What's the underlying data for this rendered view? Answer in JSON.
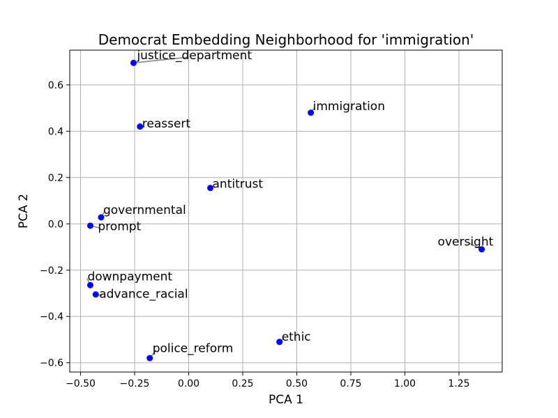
{
  "chart_data": {
    "type": "scatter",
    "title": "Democrat Embedding Neighborhood for 'immigration'",
    "xlabel": "PCA 1",
    "ylabel": "PCA 2",
    "xlim": [
      -0.55,
      1.45
    ],
    "ylim": [
      -0.64,
      0.75
    ],
    "xticks": [
      -0.5,
      -0.25,
      0.0,
      0.25,
      0.5,
      0.75,
      1.0,
      1.25
    ],
    "xtick_labels": [
      "−0.50",
      "−0.25",
      "0.00",
      "0.25",
      "0.50",
      "0.75",
      "1.00",
      "1.25"
    ],
    "yticks": [
      -0.6,
      -0.4,
      -0.2,
      0.0,
      0.2,
      0.4,
      0.6
    ],
    "ytick_labels": [
      "−0.6",
      "−0.4",
      "−0.2",
      "0.0",
      "0.2",
      "0.4",
      "0.6"
    ],
    "grid": true,
    "marker_color": "#0000ff",
    "leader_color": "#808080",
    "points": [
      {
        "label": "justice_department",
        "x": -0.255,
        "y": 0.695,
        "label_x": 0.0,
        "label_y": 0.72
      },
      {
        "label": "immigration",
        "x": 0.565,
        "y": 0.48,
        "label_x": 0.58,
        "label_y": 0.5
      },
      {
        "label": "reassert",
        "x": -0.225,
        "y": 0.42,
        "label_x": -0.225,
        "label_y": 0.425
      },
      {
        "label": "antitrust",
        "x": 0.1,
        "y": 0.155,
        "label_x": 0.11,
        "label_y": 0.165
      },
      {
        "label": "governmental",
        "x": -0.405,
        "y": 0.028,
        "label_x": -0.39,
        "label_y": 0.052
      },
      {
        "label": "prompt",
        "x": -0.455,
        "y": -0.008,
        "label_x": -0.41,
        "label_y": -0.018
      },
      {
        "label": "oversight",
        "x": 1.355,
        "y": -0.11,
        "label_x": 1.3,
        "label_y": -0.085
      },
      {
        "label": "downpayment",
        "x": -0.455,
        "y": -0.265,
        "label_x": -0.47,
        "label_y": -0.235
      },
      {
        "label": "advance_racial",
        "x": -0.43,
        "y": -0.305,
        "label_x": -0.4,
        "label_y": -0.31
      },
      {
        "label": "ethic",
        "x": 0.42,
        "y": -0.51,
        "label_x": 0.44,
        "label_y": -0.495
      },
      {
        "label": "police_reform",
        "x": -0.18,
        "y": -0.58,
        "label_x": -0.15,
        "label_y": -0.545
      }
    ]
  }
}
